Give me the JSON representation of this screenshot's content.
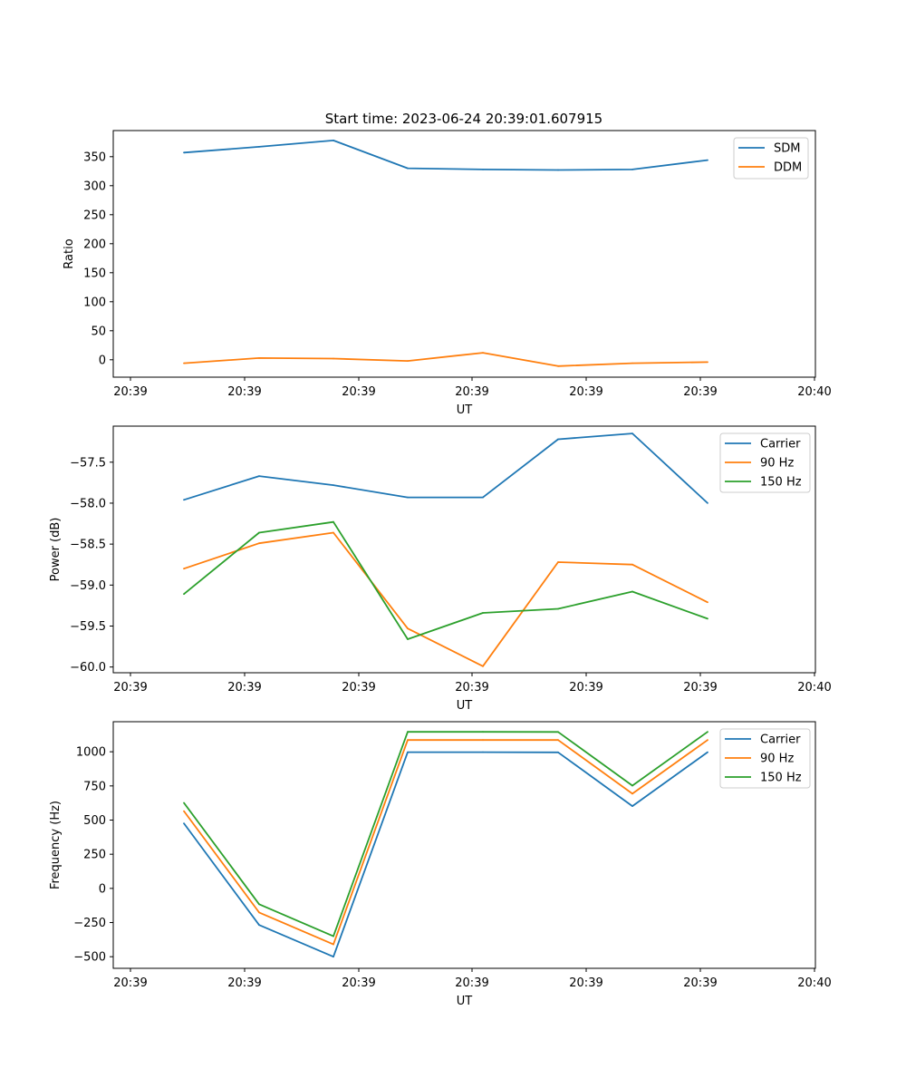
{
  "figure": {
    "title": "Start time: 2023-06-24 20:39:01.607915"
  },
  "chart_data": [
    {
      "type": "line",
      "title": "Start time: 2023-06-24 20:39:01.607915",
      "xlabel": "UT",
      "ylabel": "Ratio",
      "x_ticks": [
        "20:39",
        "20:39",
        "20:39",
        "20:39",
        "20:39",
        "20:39",
        "20:40"
      ],
      "y_ticks": [
        0,
        50,
        100,
        150,
        200,
        250,
        300,
        350
      ],
      "ylim": [
        -30,
        395
      ],
      "legend_position": "upper right",
      "grid": false,
      "series": [
        {
          "name": "SDM",
          "color": "#1f77b4",
          "values": [
            357,
            367,
            378,
            330,
            328,
            327,
            328,
            344
          ]
        },
        {
          "name": "DDM",
          "color": "#ff7f0e",
          "values": [
            -6,
            3,
            2,
            -2,
            12,
            -11,
            -6,
            -4
          ]
        }
      ]
    },
    {
      "type": "line",
      "xlabel": "UT",
      "ylabel": "Power (dB)",
      "x_ticks": [
        "20:39",
        "20:39",
        "20:39",
        "20:39",
        "20:39",
        "20:39",
        "20:40"
      ],
      "y_ticks": [
        "-60.0",
        "-59.5",
        "-59.0",
        "-58.5",
        "-58.0",
        "-57.5"
      ],
      "y_tick_values": [
        -60.0,
        -59.5,
        -59.0,
        -58.5,
        -58.0,
        -57.5
      ],
      "ylim": [
        -60.07,
        -57.06
      ],
      "legend_position": "upper right",
      "grid": false,
      "series": [
        {
          "name": "Carrier",
          "color": "#1f77b4",
          "values": [
            -57.96,
            -57.67,
            -57.78,
            -57.93,
            -57.93,
            -57.22,
            -57.15,
            -58.0
          ]
        },
        {
          "name": "90 Hz",
          "color": "#ff7f0e",
          "values": [
            -58.8,
            -58.49,
            -58.36,
            -59.53,
            -59.99,
            -58.72,
            -58.75,
            -59.21
          ]
        },
        {
          "name": "150 Hz",
          "color": "#2ca02c",
          "values": [
            -59.11,
            -58.36,
            -58.23,
            -59.66,
            -59.34,
            -59.29,
            -59.08,
            -59.41
          ]
        }
      ]
    },
    {
      "type": "line",
      "xlabel": "UT",
      "ylabel": "Frequency (Hz)",
      "x_ticks": [
        "20:39",
        "20:39",
        "20:39",
        "20:39",
        "20:39",
        "20:39",
        "20:40"
      ],
      "y_ticks": [
        -500,
        -250,
        0,
        250,
        500,
        750,
        1000
      ],
      "ylim": [
        -585,
        1220
      ],
      "legend_position": "upper right",
      "grid": false,
      "series": [
        {
          "name": "Carrier",
          "color": "#1f77b4",
          "values": [
            476,
            -268,
            -500,
            997,
            997,
            996,
            602,
            997
          ]
        },
        {
          "name": "90 Hz",
          "color": "#ff7f0e",
          "values": [
            566,
            -176,
            -410,
            1086,
            1086,
            1086,
            693,
            1086
          ]
        },
        {
          "name": "150 Hz",
          "color": "#2ca02c",
          "values": [
            626,
            -116,
            -350,
            1146,
            1146,
            1145,
            752,
            1146
          ]
        }
      ]
    }
  ]
}
